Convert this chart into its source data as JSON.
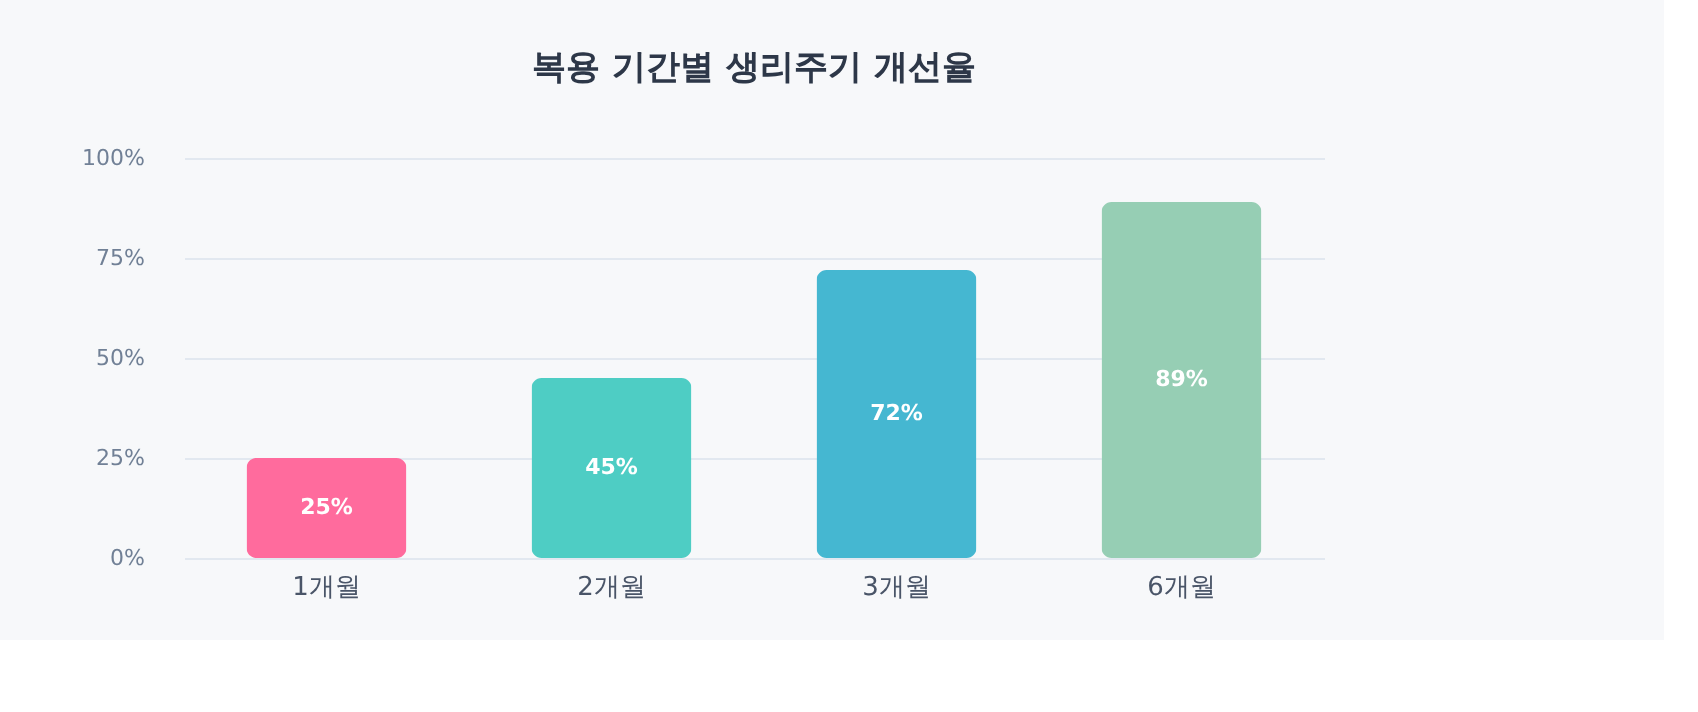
{
  "chart_data": {
    "type": "bar",
    "title": "복용 기간별 생리주기 개선율",
    "categories": [
      "1개월",
      "2개월",
      "3개월",
      "6개월"
    ],
    "values": [
      25,
      45,
      72,
      89
    ],
    "colors": [
      "#ff6b9d",
      "#4ecdc4",
      "#45b7d1",
      "#96ceb4"
    ],
    "ylim": [
      0,
      100
    ],
    "yticks": [
      {
        "value": 0,
        "label": "0%"
      },
      {
        "value": 25,
        "label": "25%"
      },
      {
        "value": 50,
        "label": "50%"
      },
      {
        "value": 75,
        "label": "75%"
      },
      {
        "value": 100,
        "label": "100%"
      }
    ],
    "value_labels": [
      "25%",
      "45%",
      "72%",
      "89%"
    ],
    "grid": "y",
    "legend": false
  }
}
